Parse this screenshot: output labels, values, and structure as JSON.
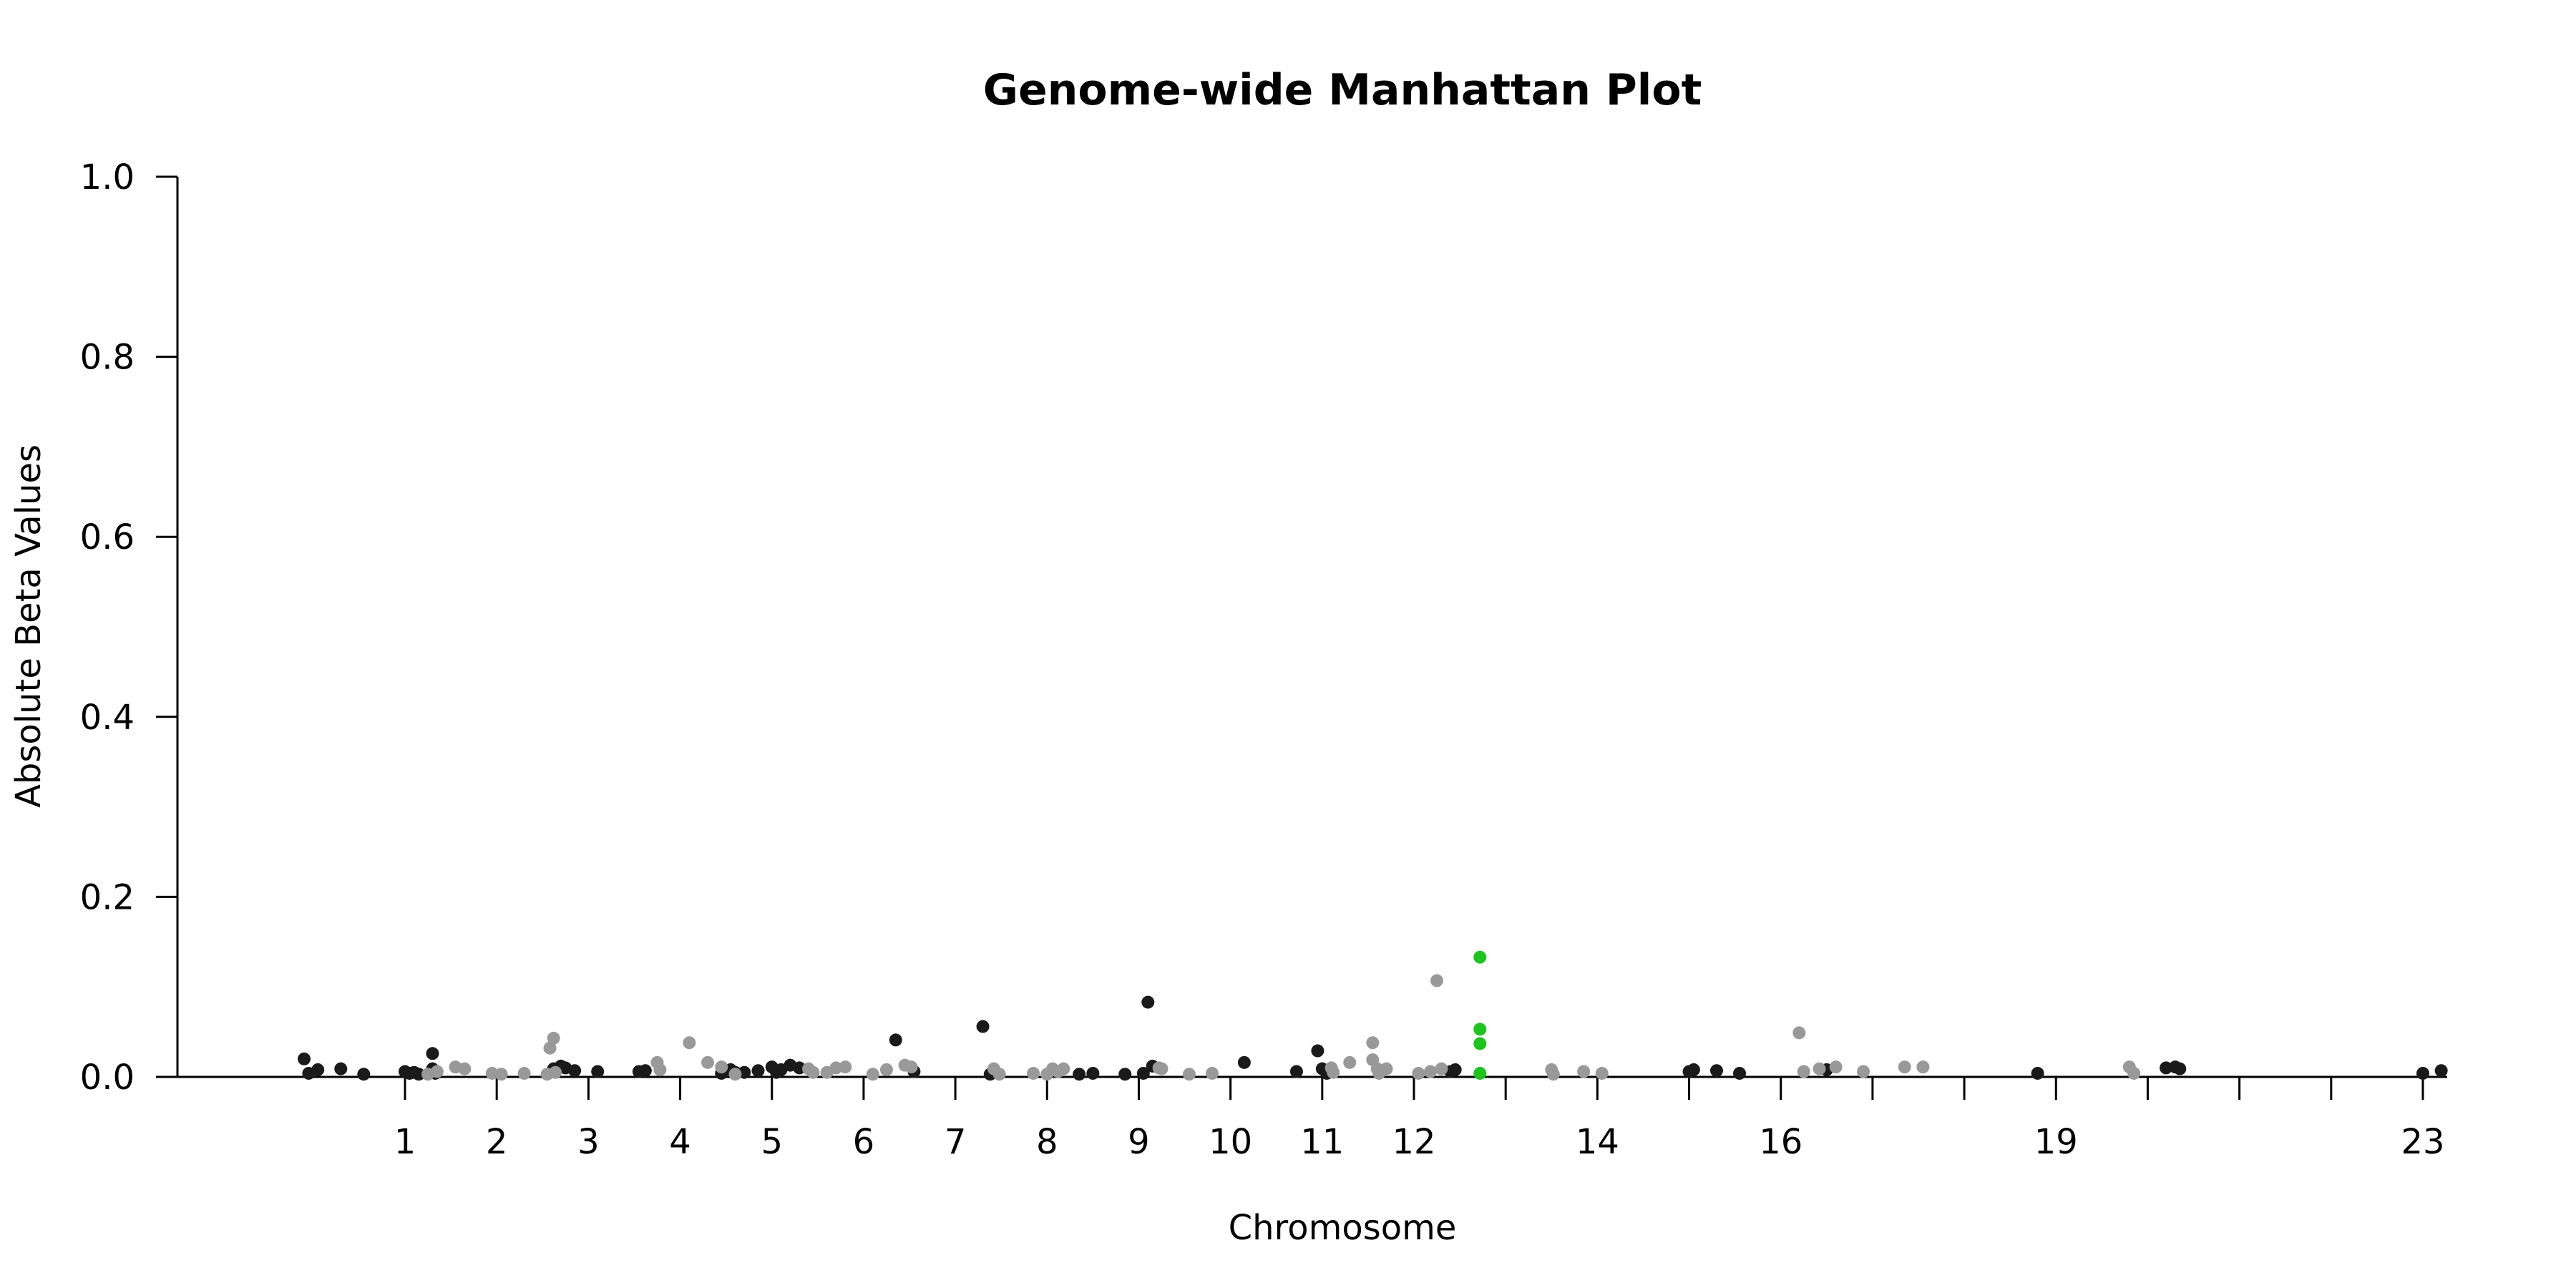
{
  "chart_data": {
    "type": "scatter",
    "title": "Genome-wide Manhattan Plot",
    "xlabel": "Chromosome",
    "ylabel": "Absolute Beta Values",
    "ylim": [
      0,
      1
    ],
    "yticks": [
      "0.0",
      "0.2",
      "0.4",
      "0.6",
      "0.8",
      "1.0"
    ],
    "grid": false,
    "legend": "none",
    "colors": {
      "dark": "#1a1a1a",
      "light": "#999999",
      "highlight": "#1ec31e",
      "axis": "#000000"
    },
    "chromosome_ticks": [
      {
        "label": "1",
        "x": 1.0
      },
      {
        "label": "2",
        "x": 2.0
      },
      {
        "label": "3",
        "x": 3.0
      },
      {
        "label": "4",
        "x": 4.0
      },
      {
        "label": "5",
        "x": 5.0
      },
      {
        "label": "6",
        "x": 6.0
      },
      {
        "label": "7",
        "x": 7.0
      },
      {
        "label": "8",
        "x": 8.0
      },
      {
        "label": "9",
        "x": 9.0
      },
      {
        "label": "10",
        "x": 10.0
      },
      {
        "label": "11",
        "x": 11.0
      },
      {
        "label": "12",
        "x": 12.0
      },
      {
        "label": "",
        "x": 13.0
      },
      {
        "label": "14",
        "x": 14.0
      },
      {
        "label": "",
        "x": 15.0
      },
      {
        "label": "16",
        "x": 16.0
      },
      {
        "label": "",
        "x": 17.0
      },
      {
        "label": "",
        "x": 18.0
      },
      {
        "label": "19",
        "x": 19.0
      },
      {
        "label": "",
        "x": 20.0
      },
      {
        "label": "",
        "x": 21.0
      },
      {
        "label": "",
        "x": 22.0
      },
      {
        "label": "23",
        "x": 23.0
      }
    ],
    "series": [
      {
        "color": "dark",
        "points": [
          [
            -0.1,
            0.02
          ],
          [
            -0.05,
            0.004
          ],
          [
            0.05,
            0.008
          ],
          [
            0.3,
            0.009
          ],
          [
            0.55,
            0.003
          ],
          [
            1.0,
            0.006
          ],
          [
            1.05,
            0.004
          ],
          [
            1.1,
            0.005
          ],
          [
            1.15,
            0.003
          ],
          [
            1.3,
            0.026
          ],
          [
            1.3,
            0.009
          ],
          [
            1.33,
            0.004
          ],
          [
            2.62,
            0.009
          ],
          [
            2.7,
            0.012
          ],
          [
            2.75,
            0.01
          ],
          [
            2.85,
            0.007
          ],
          [
            3.1,
            0.006
          ],
          [
            3.55,
            0.006
          ],
          [
            3.62,
            0.007
          ],
          [
            4.45,
            0.004
          ],
          [
            4.55,
            0.008
          ],
          [
            4.6,
            0.005
          ],
          [
            4.7,
            0.005
          ],
          [
            4.85,
            0.007
          ],
          [
            5.0,
            0.011
          ],
          [
            5.05,
            0.005
          ],
          [
            5.1,
            0.008
          ],
          [
            5.2,
            0.013
          ],
          [
            5.3,
            0.01
          ],
          [
            6.35,
            0.041
          ],
          [
            6.55,
            0.006
          ],
          [
            7.3,
            0.056
          ],
          [
            7.38,
            0.003
          ],
          [
            8.35,
            0.003
          ],
          [
            8.5,
            0.004
          ],
          [
            8.85,
            0.003
          ],
          [
            9.1,
            0.083
          ],
          [
            9.15,
            0.012
          ],
          [
            9.05,
            0.004
          ],
          [
            10.15,
            0.016
          ],
          [
            10.72,
            0.006
          ],
          [
            10.95,
            0.029
          ],
          [
            11.0,
            0.009
          ],
          [
            11.05,
            0.004
          ],
          [
            12.4,
            0.006
          ],
          [
            12.45,
            0.008
          ],
          [
            15.0,
            0.006
          ],
          [
            15.05,
            0.008
          ],
          [
            15.3,
            0.007
          ],
          [
            15.55,
            0.004
          ],
          [
            16.5,
            0.008
          ],
          [
            18.8,
            0.004
          ],
          [
            20.2,
            0.01
          ],
          [
            20.3,
            0.011
          ],
          [
            20.35,
            0.009
          ],
          [
            23.0,
            0.004
          ],
          [
            23.2,
            0.007
          ]
        ]
      },
      {
        "color": "light",
        "points": [
          [
            1.25,
            0.003
          ],
          [
            1.35,
            0.006
          ],
          [
            1.55,
            0.011
          ],
          [
            1.65,
            0.009
          ],
          [
            1.95,
            0.004
          ],
          [
            2.05,
            0.003
          ],
          [
            2.3,
            0.004
          ],
          [
            2.55,
            0.003
          ],
          [
            2.58,
            0.032
          ],
          [
            2.62,
            0.043
          ],
          [
            2.64,
            0.005
          ],
          [
            3.75,
            0.016
          ],
          [
            3.78,
            0.008
          ],
          [
            4.1,
            0.038
          ],
          [
            4.3,
            0.016
          ],
          [
            4.45,
            0.011
          ],
          [
            4.6,
            0.003
          ],
          [
            5.4,
            0.009
          ],
          [
            5.45,
            0.005
          ],
          [
            5.6,
            0.005
          ],
          [
            5.7,
            0.01
          ],
          [
            5.8,
            0.011
          ],
          [
            6.1,
            0.003
          ],
          [
            6.25,
            0.008
          ],
          [
            6.45,
            0.013
          ],
          [
            6.52,
            0.011
          ],
          [
            7.42,
            0.009
          ],
          [
            7.48,
            0.003
          ],
          [
            7.85,
            0.004
          ],
          [
            8.0,
            0.003
          ],
          [
            8.06,
            0.009
          ],
          [
            8.12,
            0.006
          ],
          [
            8.18,
            0.009
          ],
          [
            9.22,
            0.01
          ],
          [
            9.25,
            0.009
          ],
          [
            9.55,
            0.003
          ],
          [
            9.8,
            0.004
          ],
          [
            11.1,
            0.01
          ],
          [
            11.12,
            0.005
          ],
          [
            11.3,
            0.016
          ],
          [
            11.55,
            0.038
          ],
          [
            11.55,
            0.019
          ],
          [
            11.6,
            0.009
          ],
          [
            11.62,
            0.004
          ],
          [
            11.7,
            0.009
          ],
          [
            12.05,
            0.004
          ],
          [
            12.18,
            0.006
          ],
          [
            12.25,
            0.107
          ],
          [
            12.3,
            0.009
          ],
          [
            13.5,
            0.008
          ],
          [
            13.52,
            0.003
          ],
          [
            13.85,
            0.006
          ],
          [
            14.05,
            0.004
          ],
          [
            16.2,
            0.049
          ],
          [
            16.25,
            0.006
          ],
          [
            16.42,
            0.009
          ],
          [
            16.6,
            0.011
          ],
          [
            16.9,
            0.006
          ],
          [
            17.35,
            0.011
          ],
          [
            17.55,
            0.011
          ],
          [
            19.8,
            0.011
          ],
          [
            19.85,
            0.004
          ]
        ]
      },
      {
        "color": "highlight",
        "points": [
          [
            12.72,
            0.133
          ],
          [
            12.72,
            0.053
          ],
          [
            12.72,
            0.037
          ],
          [
            12.72,
            0.004
          ]
        ]
      }
    ]
  }
}
